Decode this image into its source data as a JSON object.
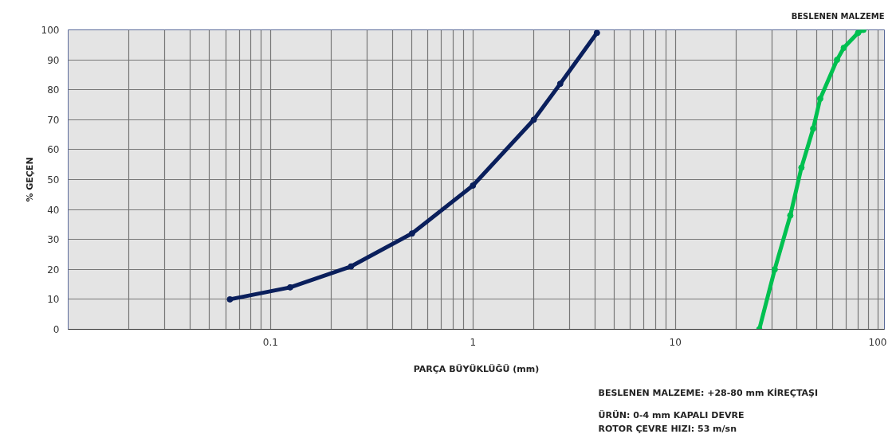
{
  "chart_data": {
    "type": "line",
    "xlabel": "PARÇA BÜYÜKLÜĞÜ (mm)",
    "ylabel": "% GEÇEN",
    "title": "BESLENEN MALZEME",
    "log": "x",
    "grid": true,
    "marker": "circle",
    "line_style": "solid",
    "xlim": [
      0.01,
      108
    ],
    "ylim": [
      0,
      100
    ],
    "xticks": [
      {
        "value": 0.02,
        "label": null
      },
      {
        "value": 0.03,
        "label": null
      },
      {
        "value": 0.04,
        "label": null
      },
      {
        "value": 0.05,
        "label": null
      },
      {
        "value": 0.06,
        "label": null
      },
      {
        "value": 0.07,
        "label": null
      },
      {
        "value": 0.08,
        "label": null
      },
      {
        "value": 0.09,
        "label": null
      },
      0.1,
      {
        "value": 0.2,
        "label": null
      },
      {
        "value": 0.3,
        "label": null
      },
      {
        "value": 0.4,
        "label": null
      },
      {
        "value": 0.5,
        "label": null
      },
      {
        "value": 0.6,
        "label": null
      },
      {
        "value": 0.7,
        "label": null
      },
      {
        "value": 0.8,
        "label": null
      },
      {
        "value": 0.9,
        "label": null
      },
      1,
      {
        "value": 2,
        "label": null
      },
      {
        "value": 3,
        "label": null
      },
      {
        "value": 4,
        "label": null
      },
      {
        "value": 5,
        "label": null
      },
      {
        "value": 6,
        "label": null
      },
      {
        "value": 7,
        "label": null
      },
      {
        "value": 8,
        "label": null
      },
      {
        "value": 9,
        "label": null
      },
      10,
      {
        "value": 20,
        "label": null
      },
      {
        "value": 30,
        "label": null
      },
      {
        "value": 40,
        "label": null
      },
      {
        "value": 50,
        "label": null
      },
      {
        "value": 60,
        "label": null
      },
      {
        "value": 70,
        "label": null
      },
      {
        "value": 80,
        "label": null
      },
      {
        "value": 90,
        "label": null
      },
      100
    ],
    "yticks": [
      0,
      10,
      20,
      30,
      40,
      50,
      60,
      70,
      80,
      90,
      100
    ],
    "series": [
      {
        "color": "#0a1f5c",
        "x": [
          0.063,
          0.125,
          0.25,
          0.5,
          1,
          2,
          2.7,
          4.1
        ],
        "values": [
          10,
          14,
          21,
          32,
          48,
          70,
          82,
          99
        ]
      },
      {
        "color": "#00c050",
        "x": [
          26,
          31,
          37,
          42,
          48,
          52,
          63,
          68,
          80,
          85
        ],
        "values": [
          0,
          20,
          38,
          54,
          67,
          77,
          90,
          94,
          99,
          100
        ]
      }
    ],
    "annotations": [
      "BESLENEN MALZEME: +28-80 mm KİREÇTAŞI",
      "ÜRÜN: 0-4 mm KAPALI DEVRE",
      "ROTOR ÇEVRE HIZI: 53 m/sn"
    ]
  }
}
